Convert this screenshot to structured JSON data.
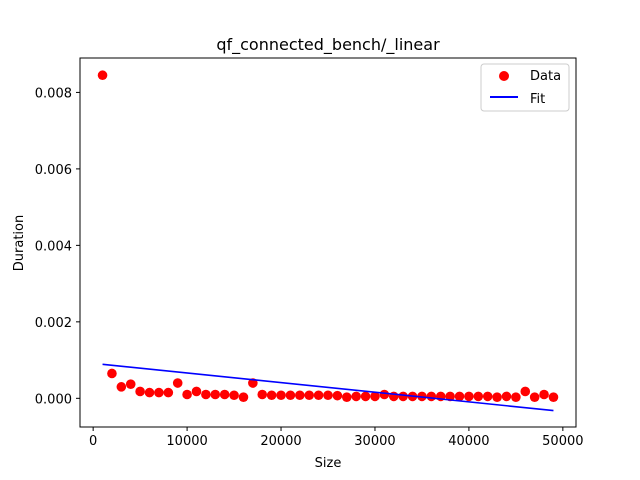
{
  "chart_data": {
    "type": "scatter",
    "title": "qf_connected_bench/_linear",
    "xlabel": "Size",
    "ylabel": "Duration",
    "xlim": [
      -1400,
      51400
    ],
    "ylim": [
      -0.00075,
      0.0089
    ],
    "xticks": [
      0,
      10000,
      20000,
      30000,
      40000,
      50000
    ],
    "xtick_labels": [
      "0",
      "10000",
      "20000",
      "30000",
      "40000",
      "50000"
    ],
    "yticks": [
      0.0,
      0.002,
      0.004,
      0.006,
      0.008
    ],
    "ytick_labels": [
      "0.000",
      "0.002",
      "0.004",
      "0.006",
      "0.008"
    ],
    "legend_position": "top-right",
    "grid": false,
    "series": [
      {
        "name": "Data",
        "kind": "scatter",
        "color": "#ff0000",
        "points": [
          [
            1000,
            0.00845
          ],
          [
            2000,
            0.00065
          ],
          [
            3000,
            0.0003
          ],
          [
            4000,
            0.00037
          ],
          [
            5000,
            0.00018
          ],
          [
            6000,
            0.00015
          ],
          [
            7000,
            0.00015
          ],
          [
            8000,
            0.00015
          ],
          [
            9000,
            0.0004
          ],
          [
            10000,
            0.0001
          ],
          [
            11000,
            0.00018
          ],
          [
            12000,
            0.0001
          ],
          [
            13000,
            0.0001
          ],
          [
            14000,
            0.0001
          ],
          [
            15000,
            8e-05
          ],
          [
            16000,
            3e-05
          ],
          [
            17000,
            0.0004
          ],
          [
            18000,
            0.0001
          ],
          [
            19000,
            8e-05
          ],
          [
            20000,
            8e-05
          ],
          [
            21000,
            8e-05
          ],
          [
            22000,
            8e-05
          ],
          [
            23000,
            8e-05
          ],
          [
            24000,
            8e-05
          ],
          [
            25000,
            8e-05
          ],
          [
            26000,
            7e-05
          ],
          [
            27000,
            3e-05
          ],
          [
            28000,
            5e-05
          ],
          [
            29000,
            5e-05
          ],
          [
            30000,
            5e-05
          ],
          [
            31000,
            0.0001
          ],
          [
            32000,
            5e-05
          ],
          [
            33000,
            5e-05
          ],
          [
            34000,
            5e-05
          ],
          [
            35000,
            5e-05
          ],
          [
            36000,
            5e-05
          ],
          [
            37000,
            5e-05
          ],
          [
            38000,
            5e-05
          ],
          [
            39000,
            5e-05
          ],
          [
            40000,
            5e-05
          ],
          [
            41000,
            5e-05
          ],
          [
            42000,
            5e-05
          ],
          [
            43000,
            3e-05
          ],
          [
            44000,
            5e-05
          ],
          [
            45000,
            3e-05
          ],
          [
            46000,
            0.00018
          ],
          [
            47000,
            3e-05
          ],
          [
            48000,
            0.0001
          ],
          [
            49000,
            3e-05
          ]
        ]
      },
      {
        "name": "Fit",
        "kind": "line",
        "color": "#0000ff",
        "points": [
          [
            1000,
            0.00089
          ],
          [
            49000,
            -0.00032
          ]
        ]
      }
    ]
  }
}
